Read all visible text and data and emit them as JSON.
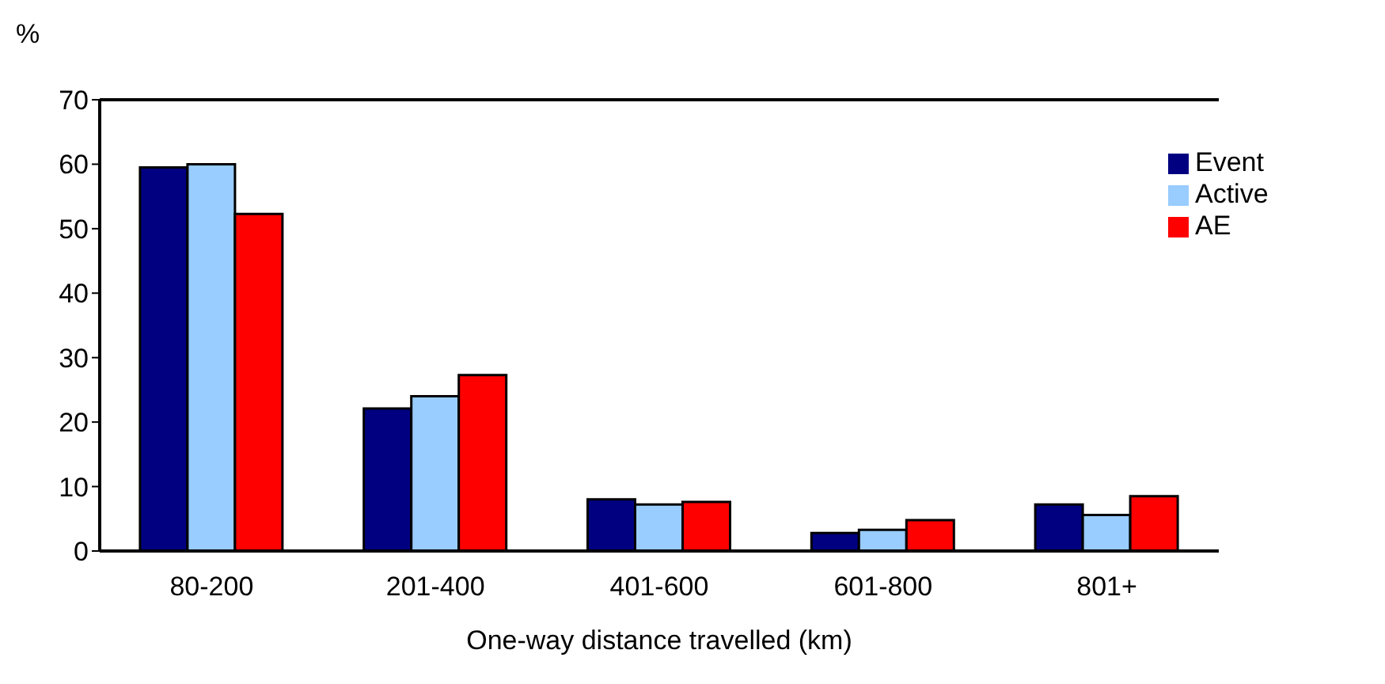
{
  "chart_data": {
    "type": "bar",
    "ylabel": "%",
    "xlabel": "One-way distance travelled (km)",
    "categories": [
      "80-200",
      "201-400",
      "401-600",
      "601-800",
      "801+"
    ],
    "series": [
      {
        "name": "Event",
        "color": "#000080",
        "values": [
          59.5,
          22.1,
          8.0,
          2.8,
          7.2
        ]
      },
      {
        "name": "Active",
        "color": "#99ccff",
        "values": [
          60.0,
          24.0,
          7.2,
          3.3,
          5.6
        ]
      },
      {
        "name": "AE",
        "color": "#ff0000",
        "values": [
          52.3,
          27.3,
          7.6,
          4.8,
          8.5
        ]
      }
    ],
    "ylim": [
      0,
      70
    ],
    "yticks": [
      0,
      10,
      20,
      30,
      40,
      50,
      60,
      70
    ],
    "grid": false,
    "legend": "top right"
  }
}
